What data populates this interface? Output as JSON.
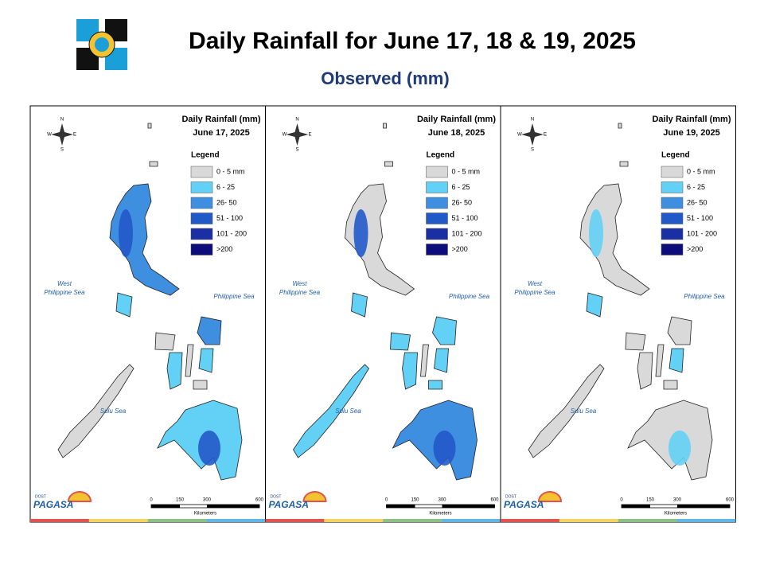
{
  "header": {
    "title": "Daily Rainfall for June 17, 18 & 19, 2025",
    "subtitle": "Observed (mm)"
  },
  "panels": [
    {
      "heading": "Daily Rainfall (mm)",
      "date": "June 17, 2025"
    },
    {
      "heading": "Daily Rainfall (mm)",
      "date": "June 18, 2025"
    },
    {
      "heading": "Daily Rainfall (mm)",
      "date": "June 19, 2025"
    }
  ],
  "legend": {
    "title": "Legend",
    "items": [
      {
        "label": "0 - 5 mm",
        "color": "#d9d9d9"
      },
      {
        "label": "6 - 25",
        "color": "#63d0f5"
      },
      {
        "label": "26- 50",
        "color": "#3f8fe0"
      },
      {
        "label": "51 - 100",
        "color": "#2259c9"
      },
      {
        "label": "101 - 200",
        "color": "#1a2fa3"
      },
      {
        "label": ">200",
        "color": "#0c0c7a"
      }
    ]
  },
  "seas": {
    "west": "West\nPhilippine Sea",
    "east": "Philippine Sea",
    "south": "Sulu Sea"
  },
  "compass": {
    "n": "N",
    "s": "S",
    "e": "E",
    "w": "W"
  },
  "scale": {
    "ticks": [
      "0",
      "150",
      "300",
      "600"
    ],
    "unit": "Kilometers"
  },
  "logo": {
    "agency": "PAGASA",
    "dept": "DOST"
  }
}
